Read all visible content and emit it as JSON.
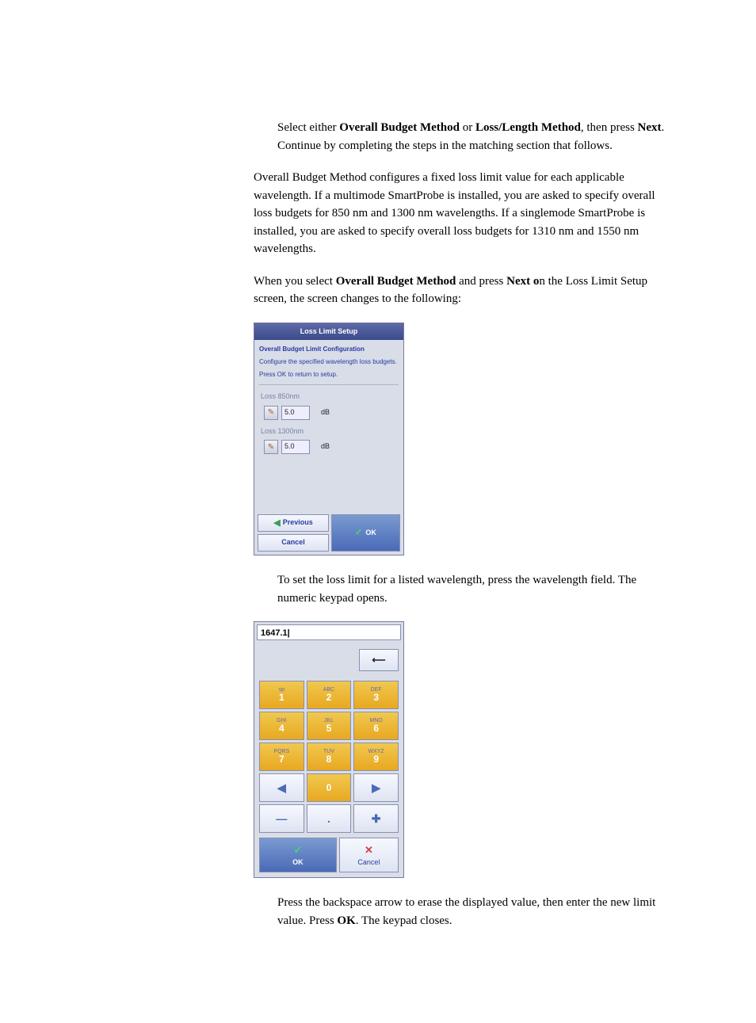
{
  "p1_a": "Select either ",
  "p1_b": "Overall Budget Method",
  "p1_c": " or ",
  "p1_d": "Loss/Length Method",
  "p1_e": ", then press ",
  "p1_f": "Next",
  "p1_g": ". Continue by completing the steps in the matching section that follows.",
  "p2": "Overall Budget Method configures a fixed loss limit value for each applicable wavelength. If a multimode SmartProbe is installed, you are asked to specify overall loss budgets for 850 nm and 1300 nm wavelengths. If a singlemode SmartProbe is installed, you are asked to specify overall loss budgets for 1310 nm and 1550 nm wavelengths.",
  "p3_a": "When you select ",
  "p3_b": "Overall Budget Method",
  "p3_c": " and press ",
  "p3_d": "Next o",
  "p3_e": "n the Loss Limit Setup screen, the screen changes to the following:",
  "p4": "To set the loss limit for a listed wavelength, press the wavelength field. The numeric keypad opens.",
  "p5_a": "Press the backspace arrow to erase the displayed value, then enter the new limit value. Press ",
  "p5_b": "OK",
  "p5_c": ". The keypad closes.",
  "screen1": {
    "title": "Loss Limit Setup",
    "heading": "Overall Budget Limit Configuration",
    "text1": "Configure the specified wavelength loss budgets.",
    "text2": "Press OK to return to setup.",
    "loss1_label": "Loss 850nm",
    "loss1_value": "5.0",
    "loss2_label": "Loss 1300nm",
    "loss2_value": "5.0",
    "unit": "dB",
    "pencil": "✎",
    "previous": "Previous",
    "cancel": "Cancel",
    "ok": "OK"
  },
  "keypad": {
    "display": "1647.1|",
    "backspace": "⟵",
    "keys": [
      {
        "sub": "sp",
        "num": "1"
      },
      {
        "sub": "ABC",
        "num": "2"
      },
      {
        "sub": "DEF",
        "num": "3"
      },
      {
        "sub": "GHI",
        "num": "4"
      },
      {
        "sub": "JKL",
        "num": "5"
      },
      {
        "sub": "MNO",
        "num": "6"
      },
      {
        "sub": "PQRS",
        "num": "7"
      },
      {
        "sub": "TUV",
        "num": "8"
      },
      {
        "sub": "WXYZ",
        "num": "9"
      }
    ],
    "left": "◀",
    "zero": "0",
    "right": "▶",
    "minus": "—",
    "dot": ".",
    "plus": "✚",
    "ok": "OK",
    "cancel": "Cancel"
  }
}
